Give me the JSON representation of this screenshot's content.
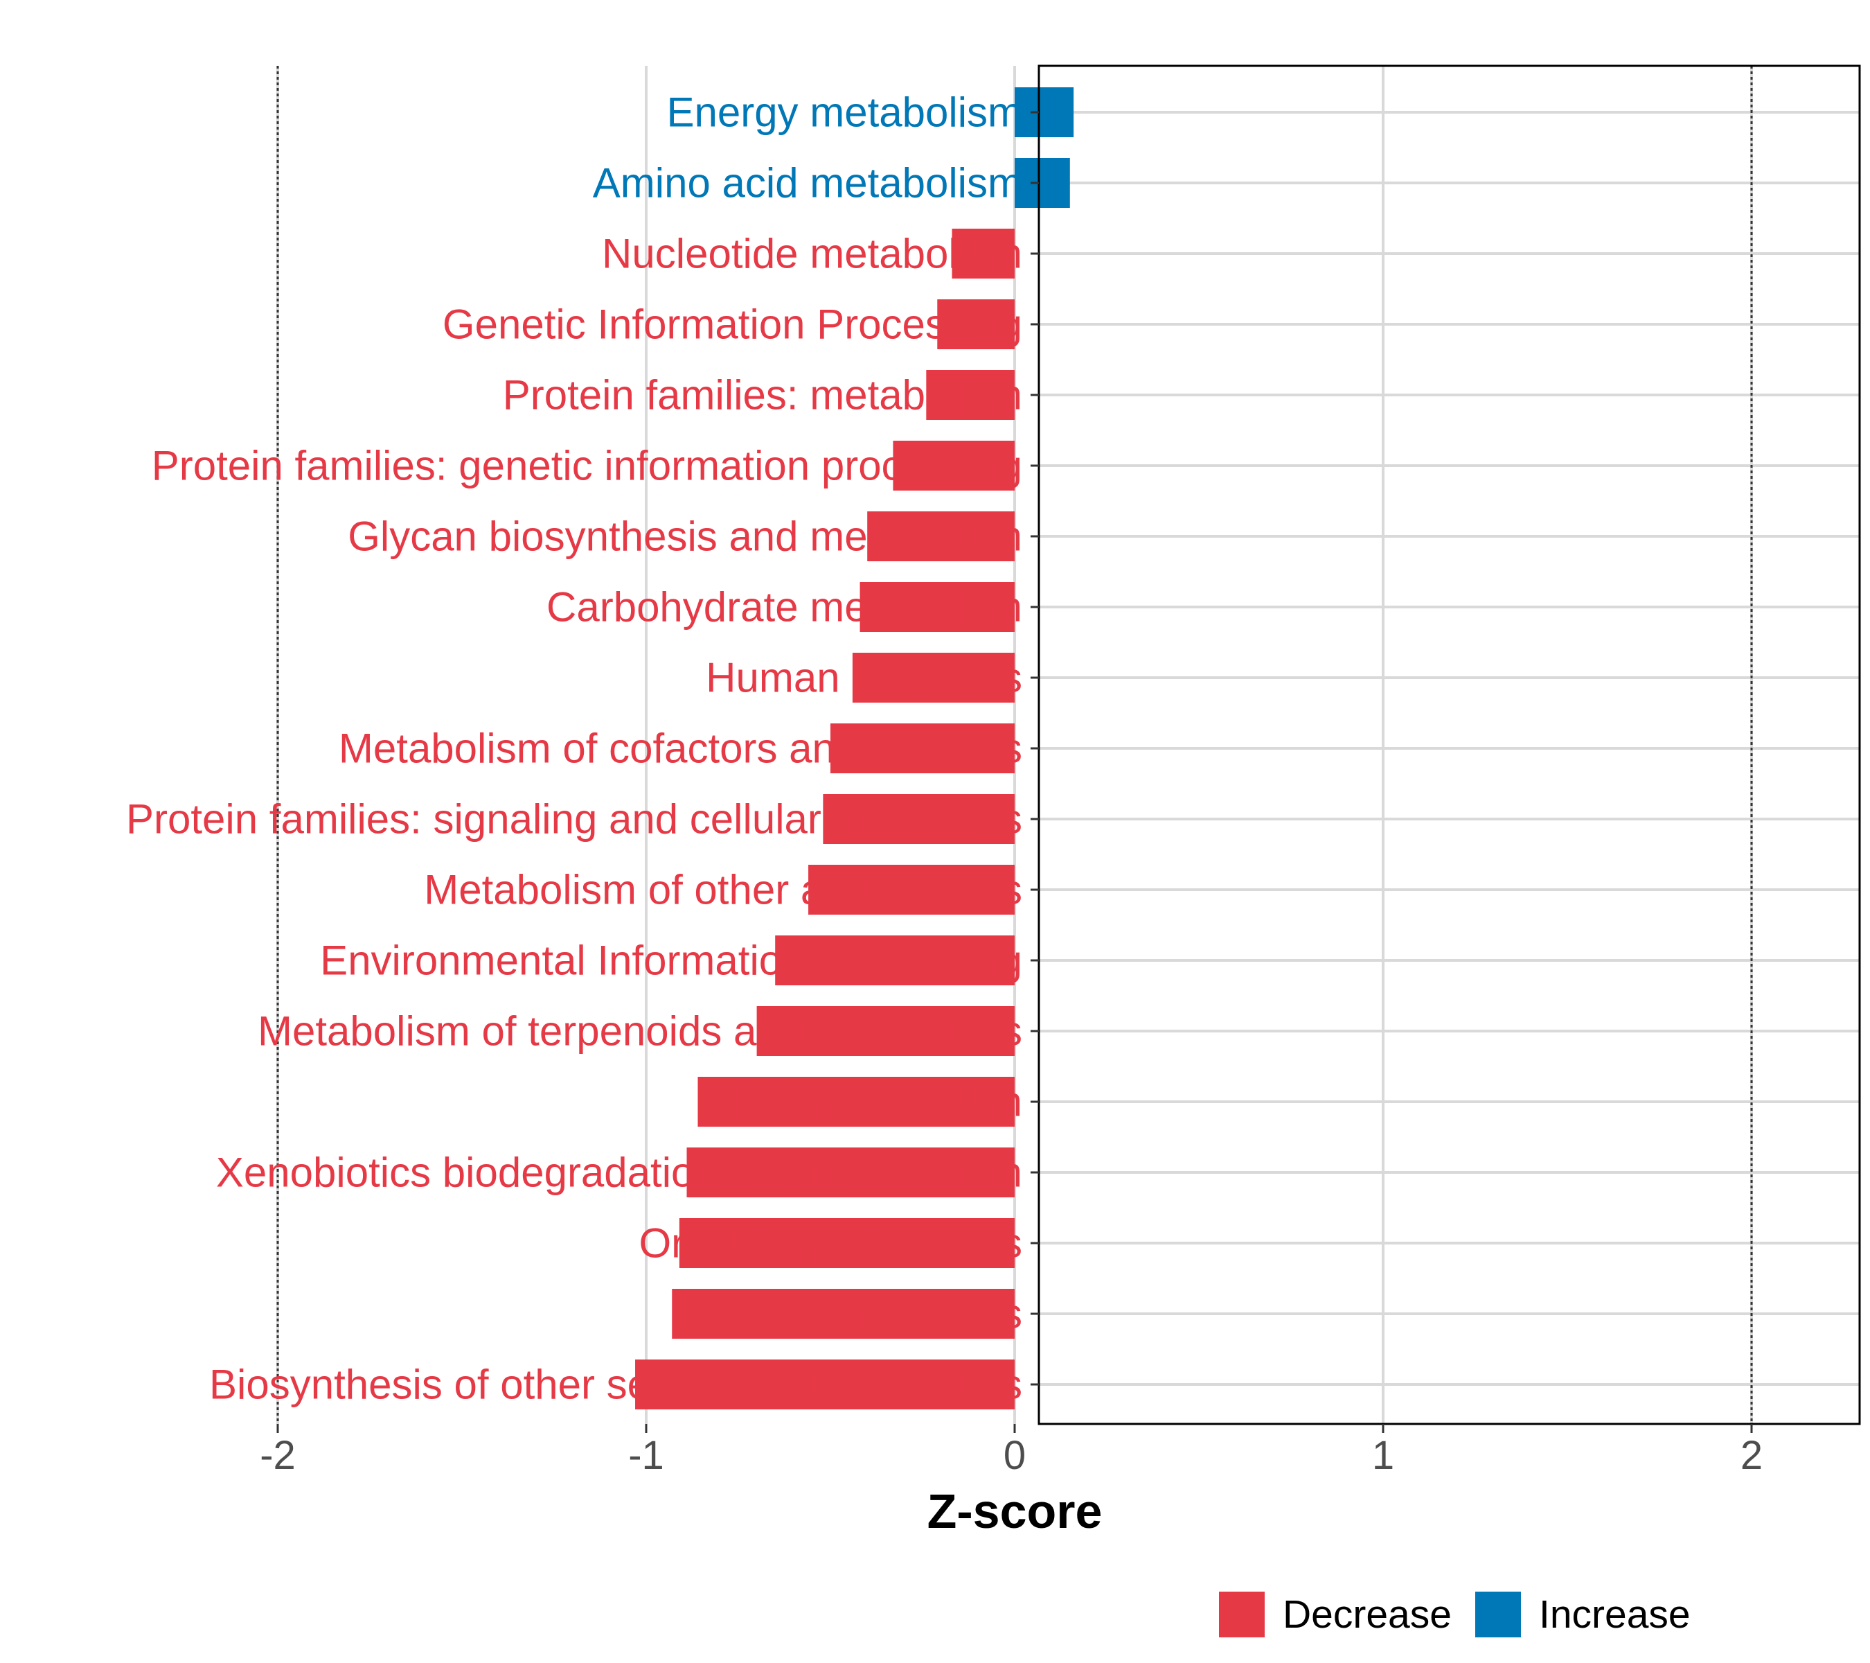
{
  "chart_data": {
    "type": "bar",
    "orientation": "horizontal",
    "title": "",
    "xlabel": "Z-score",
    "ylabel": "",
    "xlim": [
      -2.23,
      2.23
    ],
    "xticks": [
      -2,
      -1,
      0,
      1,
      2
    ],
    "xtick_labels": [
      "-2",
      "-1",
      "0",
      "1",
      "2"
    ],
    "reference_lines": [
      -2,
      2
    ],
    "grid": true,
    "colors": {
      "Decrease": "#e63946",
      "Increase": "#0077b6"
    },
    "legend": {
      "placement": "bottom",
      "entries": [
        "Decrease",
        "Increase"
      ]
    },
    "categories": [
      "Energy metabolism",
      "Amino acid metabolism",
      "Nucleotide metabolism",
      "Genetic Information Processing",
      "Protein families: metabolism",
      "Protein families: genetic information processing",
      "Glycan biosynthesis and metabolism",
      "Carbohydrate metabolism",
      "Human Diseases",
      "Metabolism of cofactors and vitamins",
      "Protein families: signaling and cellular processes",
      "Metabolism of other amino acids",
      "Environmental Information Processing",
      "Metabolism of terpenoids and polyketides",
      "Lipid metabolism",
      "Xenobiotics biodegradation and metabolism",
      "Organismal Systems",
      "Cellular Processes",
      "Biosynthesis of other secondary metabolites"
    ],
    "values": [
      0.16,
      0.15,
      -0.17,
      -0.21,
      -0.24,
      -0.33,
      -0.4,
      -0.42,
      -0.44,
      -0.5,
      -0.52,
      -0.56,
      -0.65,
      -0.7,
      -0.86,
      -0.89,
      -0.91,
      -0.93,
      -1.03
    ],
    "groups": [
      "Increase",
      "Increase",
      "Decrease",
      "Decrease",
      "Decrease",
      "Decrease",
      "Decrease",
      "Decrease",
      "Decrease",
      "Decrease",
      "Decrease",
      "Decrease",
      "Decrease",
      "Decrease",
      "Decrease",
      "Decrease",
      "Decrease",
      "Decrease",
      "Decrease"
    ]
  }
}
